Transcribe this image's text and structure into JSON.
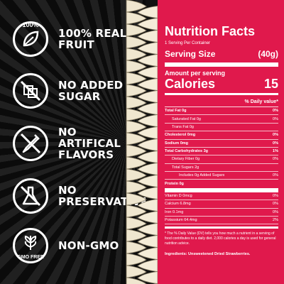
{
  "features": [
    {
      "label": "100% Real Fruit",
      "icon": "leaf-icon",
      "badge_text": "100%"
    },
    {
      "label": "No Added Sugar",
      "icon": "no-sugar-icon"
    },
    {
      "label": "No Artifical Flavors",
      "icon": "no-dropper-icon"
    },
    {
      "label": "No Preservatives",
      "icon": "no-flask-icon"
    },
    {
      "label": "Non-GMO",
      "icon": "gmo-free-icon",
      "badge_text": "GMO FREE"
    }
  ],
  "nutrition": {
    "title": "Nutrition Facts",
    "servings_per_container": "1 Serving Per Container",
    "serving_size_label": "Serving Size",
    "serving_size_value": "(40g)",
    "amount_per_serving": "Amount per serving",
    "calories_label": "Calories",
    "calories_value": "15",
    "daily_value_header": "% Daily value*",
    "rows": [
      {
        "name": "Total Fat 0g",
        "dv": "0%"
      },
      {
        "name": "Saturated Fat 0g",
        "dv": "0%"
      },
      {
        "name": "Trans Fat 0g",
        "dv": ""
      },
      {
        "name": "Cholesterol 0mg",
        "dv": "0%"
      },
      {
        "name": "Sodium 0mg",
        "dv": "0%"
      },
      {
        "name": "Total Carbohydrates 3g",
        "dv": "1%"
      },
      {
        "name": "Dietary Fiber 0g",
        "dv": "0%"
      },
      {
        "name": "Total Sugars 2g",
        "dv": ""
      },
      {
        "name": "Includes 0g Added Sugars",
        "dv": "0%"
      },
      {
        "name": "Protein 0g",
        "dv": ""
      },
      {
        "name": "Vitamin D 0mcg",
        "dv": "0%"
      },
      {
        "name": "Calcium 6.8mg",
        "dv": "0%"
      },
      {
        "name": "Iron 0.1mg",
        "dv": "0%"
      },
      {
        "name": "Potassium 64.4mg",
        "dv": "2%"
      }
    ],
    "footnote": "* The % Daily Value (DV) tells you how much a nutrient in a serving of food contributes to a daily diet. 2,000 calories a day is used for general nutrition advice.",
    "ingredients": "Ingredients: Unsweetened Dried Strawberries."
  },
  "colors": {
    "accent": "#e0194c",
    "dark": "#111111",
    "text": "#ffffff"
  }
}
